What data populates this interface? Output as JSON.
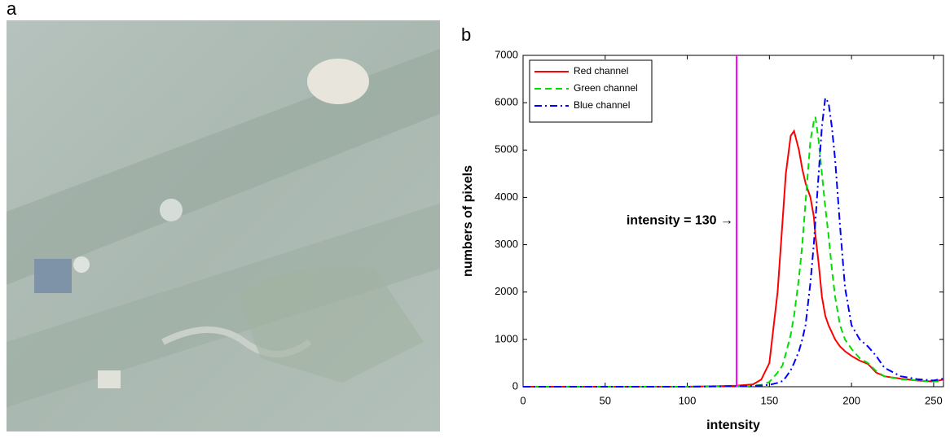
{
  "panel_labels": [
    "a",
    "b"
  ],
  "chart_data": {
    "type": "line",
    "xlabel": "intensity",
    "ylabel": "numbers of pixels",
    "annotation": "intensity = 130 →",
    "vline": 130,
    "vline_color": "#ff00ff",
    "xlim": [
      0,
      256
    ],
    "ylim": [
      0,
      7000
    ],
    "xticks": [
      0,
      50,
      100,
      150,
      200,
      250
    ],
    "yticks": [
      0,
      1000,
      2000,
      3000,
      4000,
      5000,
      6000,
      7000
    ],
    "legend": "upper left",
    "x": [
      0,
      50,
      100,
      130,
      140,
      145,
      150,
      155,
      158,
      160,
      163,
      165,
      168,
      170,
      172,
      175,
      177,
      178,
      180,
      182,
      184,
      186,
      188,
      190,
      193,
      196,
      200,
      205,
      210,
      215,
      220,
      230,
      240,
      250,
      256
    ],
    "series": [
      {
        "name": "Red channel",
        "color": "#ff0000",
        "dash": "solid",
        "values": [
          0,
          0,
          0,
          20,
          50,
          150,
          500,
          2000,
          3500,
          4500,
          5300,
          5400,
          5000,
          4600,
          4300,
          4000,
          3600,
          3200,
          2600,
          1900,
          1500,
          1300,
          1150,
          1000,
          850,
          750,
          650,
          550,
          480,
          300,
          220,
          170,
          130,
          110,
          150
        ]
      },
      {
        "name": "Green channel",
        "color": "#00dd00",
        "dash": "dashed",
        "values": [
          0,
          0,
          0,
          10,
          20,
          40,
          100,
          300,
          450,
          700,
          1100,
          1500,
          2300,
          3000,
          3900,
          5200,
          5600,
          5700,
          5200,
          4500,
          3800,
          3200,
          2500,
          1900,
          1300,
          1000,
          800,
          600,
          500,
          330,
          220,
          160,
          130,
          110,
          120
        ]
      },
      {
        "name": "Blue channel",
        "color": "#0000ff",
        "dash": "dashdot",
        "values": [
          0,
          0,
          0,
          10,
          15,
          25,
          40,
          80,
          120,
          200,
          350,
          500,
          750,
          1000,
          1300,
          2200,
          3000,
          3500,
          4500,
          5500,
          6100,
          6000,
          5500,
          4800,
          3400,
          2100,
          1300,
          1000,
          850,
          650,
          400,
          220,
          160,
          130,
          170
        ]
      }
    ]
  }
}
